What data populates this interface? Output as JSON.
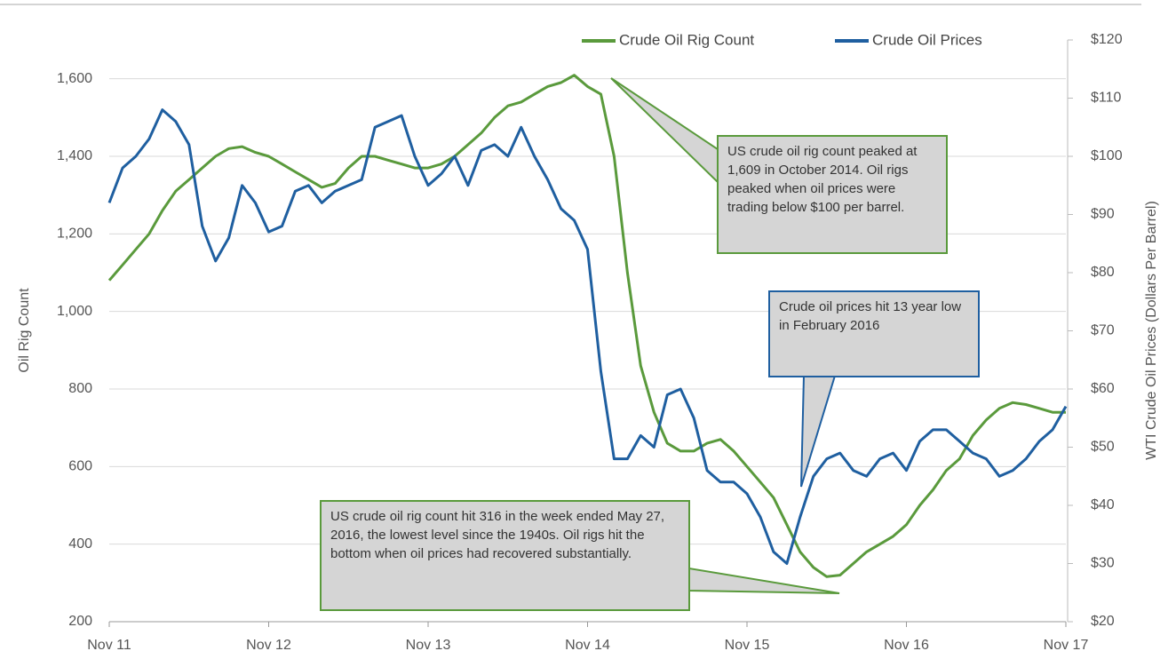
{
  "chart_data": {
    "type": "line",
    "y_label": "Oil  Rig Count",
    "y2_label": "WTI Crude Oil Prices (Dollars Per Barrel)",
    "categories": [
      "Nov 11",
      null,
      null,
      null,
      null,
      null,
      null,
      null,
      null,
      null,
      null,
      null,
      "Nov 12",
      null,
      null,
      null,
      null,
      null,
      null,
      null,
      null,
      null,
      null,
      null,
      "Nov 13",
      null,
      null,
      null,
      null,
      null,
      null,
      null,
      null,
      null,
      null,
      null,
      "Nov 14",
      null,
      null,
      null,
      null,
      null,
      null,
      null,
      null,
      null,
      null,
      null,
      "Nov 15",
      null,
      null,
      null,
      null,
      null,
      null,
      null,
      null,
      null,
      null,
      null,
      "Nov 16",
      null,
      null,
      null,
      null,
      null,
      null,
      null,
      null,
      null,
      null,
      null,
      "Nov 17"
    ],
    "series": [
      {
        "name": "Crude Oil Rig Count",
        "color": "#5a9a3c",
        "axis": "y",
        "values": [
          1080,
          1120,
          1160,
          1200,
          1260,
          1310,
          1340,
          1370,
          1400,
          1420,
          1425,
          1410,
          1400,
          1380,
          1360,
          1340,
          1320,
          1330,
          1370,
          1400,
          1400,
          1390,
          1380,
          1370,
          1370,
          1380,
          1400,
          1430,
          1460,
          1500,
          1530,
          1540,
          1560,
          1580,
          1590,
          1609,
          1580,
          1560,
          1400,
          1100,
          860,
          740,
          660,
          640,
          640,
          660,
          670,
          640,
          600,
          560,
          520,
          450,
          380,
          340,
          316,
          320,
          350,
          380,
          400,
          420,
          450,
          500,
          540,
          590,
          620,
          680,
          720,
          750,
          765,
          760,
          750,
          740,
          740
        ]
      },
      {
        "name": "Crude Oil Prices",
        "color": "#1f5fa0",
        "axis": "y2",
        "values": [
          92,
          98,
          100,
          103,
          108,
          106,
          102,
          88,
          82,
          86,
          95,
          92,
          87,
          88,
          94,
          95,
          92,
          94,
          95,
          96,
          105,
          106,
          107,
          100,
          95,
          97,
          100,
          95,
          101,
          102,
          100,
          105,
          100,
          96,
          91,
          89,
          84,
          63,
          48,
          48,
          52,
          50,
          59,
          60,
          55,
          46,
          44,
          44,
          42,
          38,
          32,
          30,
          38,
          45,
          48,
          49,
          46,
          45,
          48,
          49,
          46,
          51,
          53,
          53,
          51,
          49,
          48,
          45,
          46,
          48,
          51,
          53,
          57
        ]
      }
    ],
    "ylim": [
      200,
      1700
    ],
    "yticks": [
      200,
      400,
      600,
      800,
      {
        "value": 1000,
        "label": "1,000"
      },
      {
        "value": 1200,
        "label": "1,200"
      },
      {
        "value": 1400,
        "label": "1,400"
      },
      {
        "value": 1600,
        "label": "1,600"
      }
    ],
    "y2lim": [
      20,
      120
    ],
    "y2ticks": [
      {
        "value": 20,
        "label": "$20"
      },
      {
        "value": 30,
        "label": "$30"
      },
      {
        "value": 40,
        "label": "$40"
      },
      {
        "value": 50,
        "label": "$50"
      },
      {
        "value": 60,
        "label": "$60"
      },
      {
        "value": 70,
        "label": "$70"
      },
      {
        "value": 80,
        "label": "$80"
      },
      {
        "value": 90,
        "label": "$90"
      },
      {
        "value": 100,
        "label": "$100"
      },
      {
        "value": 110,
        "label": "$110"
      },
      {
        "value": 120,
        "label": "$120"
      }
    ],
    "grid": true,
    "legend": "top",
    "annotations": [
      {
        "text": "US crude oil rig count peaked at 1,609 in October 2014.  Oil rigs peaked when oil prices were trading below $100 per barrel."
      },
      {
        "text": "Crude oil prices hit 13 year low in February 2016"
      },
      {
        "text": "US crude oil rig count hit 316 in the week ended May 27, 2016, the lowest level since the 1940s. Oil rigs hit the bottom when oil prices had recovered substantially."
      }
    ]
  }
}
